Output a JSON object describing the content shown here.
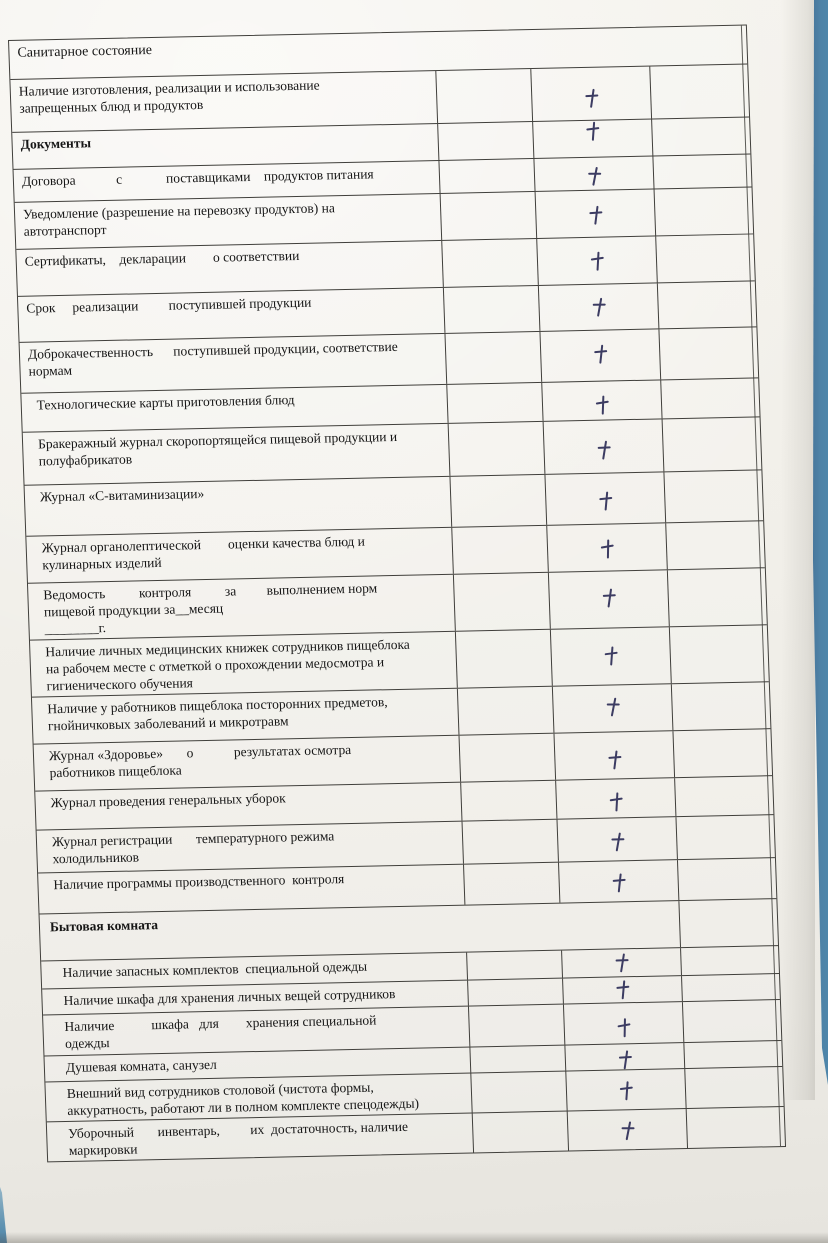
{
  "page": {
    "description_title": "Санитарное состояние",
    "paper_color": "#f1efe9",
    "binder_color": "#4e82a6",
    "line_color": "#403f3b",
    "ink_color": "#3c3c62",
    "mark_glyph": "+"
  },
  "table": {
    "rows": [
      {
        "kind": "section",
        "bold": false,
        "span": "full",
        "label": "Санитарное состояние",
        "mark": ""
      },
      {
        "kind": "item",
        "label": "Наличие изготовления, реализации и использование\nзапрещенных блюд и продуктов",
        "mark": "+"
      },
      {
        "kind": "section",
        "bold": true,
        "span": "cells",
        "label": "Документы",
        "mark": "+"
      },
      {
        "kind": "item",
        "label": "Договора            с             поставщиками    продуктов питания",
        "mark": "+"
      },
      {
        "kind": "item",
        "label": "Уведомление (разрешение на перевозку продуктов) на\nавтотранспорт",
        "mark": "+"
      },
      {
        "kind": "item",
        "label": "Сертификаты,    декларации        о соответствии",
        "mark": "+"
      },
      {
        "kind": "item",
        "label": "Срок     реализации         поступившей продукции",
        "mark": "+"
      },
      {
        "kind": "item",
        "label": "Доброкачественность      поступившей продукции, соответствие\nнормам",
        "mark": "+"
      },
      {
        "kind": "item",
        "label": "Технологические карты приготовления блюд",
        "mark": "+"
      },
      {
        "kind": "item",
        "label": "Бракеражный журнал скоропортящейся пищевой продукции и\nполуфабрикатов",
        "mark": "+"
      },
      {
        "kind": "item",
        "label": "Журнал «С-витаминизации»",
        "mark": "+"
      },
      {
        "kind": "item",
        "label": "Журнал органолептической        оценки качества блюд и\nкулинарных изделий",
        "mark": "+"
      },
      {
        "kind": "item",
        "label": "Ведомость          контроля          за         выполнением норм\nпищевой продукции за__месяц\n________г.",
        "mark": "+"
      },
      {
        "kind": "item",
        "label": "Наличие личных медицинских книжек сотрудников пищеблока\nна рабочем месте с отметкой о прохождении медосмотра и\nгигиенического обучения",
        "mark": "+"
      },
      {
        "kind": "item",
        "label": "Наличие у работников пищеблока посторонних предметов,\nгнойничковых заболеваний и микротравм",
        "mark": "+"
      },
      {
        "kind": "item",
        "label": "Журнал «Здоровье»       о            результатах осмотра\nработников пищеблока",
        "mark": "+"
      },
      {
        "kind": "item",
        "label": "Журнал проведения генеральных уборок",
        "mark": "+"
      },
      {
        "kind": "item",
        "label": "Журнал регистрации       температурного режима\nхолодильников",
        "mark": "+"
      },
      {
        "kind": "item",
        "label": "Наличие программы производственного  контроля",
        "mark": "+"
      },
      {
        "kind": "section",
        "bold": true,
        "span": "span3",
        "label": "Бытовая комната",
        "mark": ""
      },
      {
        "kind": "item",
        "label": "Наличие запасных комплектов  специальной одежды",
        "mark": "+"
      },
      {
        "kind": "item",
        "label": "Наличие шкафа для хранения личных вещей сотрудников",
        "mark": "+"
      },
      {
        "kind": "item",
        "label": "Наличие           шкафа   для        хранения специальной\nодежды",
        "mark": "+"
      },
      {
        "kind": "item",
        "label": "Душевая комната, санузел",
        "mark": "+"
      },
      {
        "kind": "item",
        "label": "Внешний вид сотрудников столовой (чистота формы,\nаккуратность, работают ли в полном комплекте спецодежды)",
        "mark": "+"
      },
      {
        "kind": "item",
        "label": "Уборочный       инвентарь,         их  достаточность, наличие\nмаркировки",
        "mark": "+"
      }
    ]
  }
}
